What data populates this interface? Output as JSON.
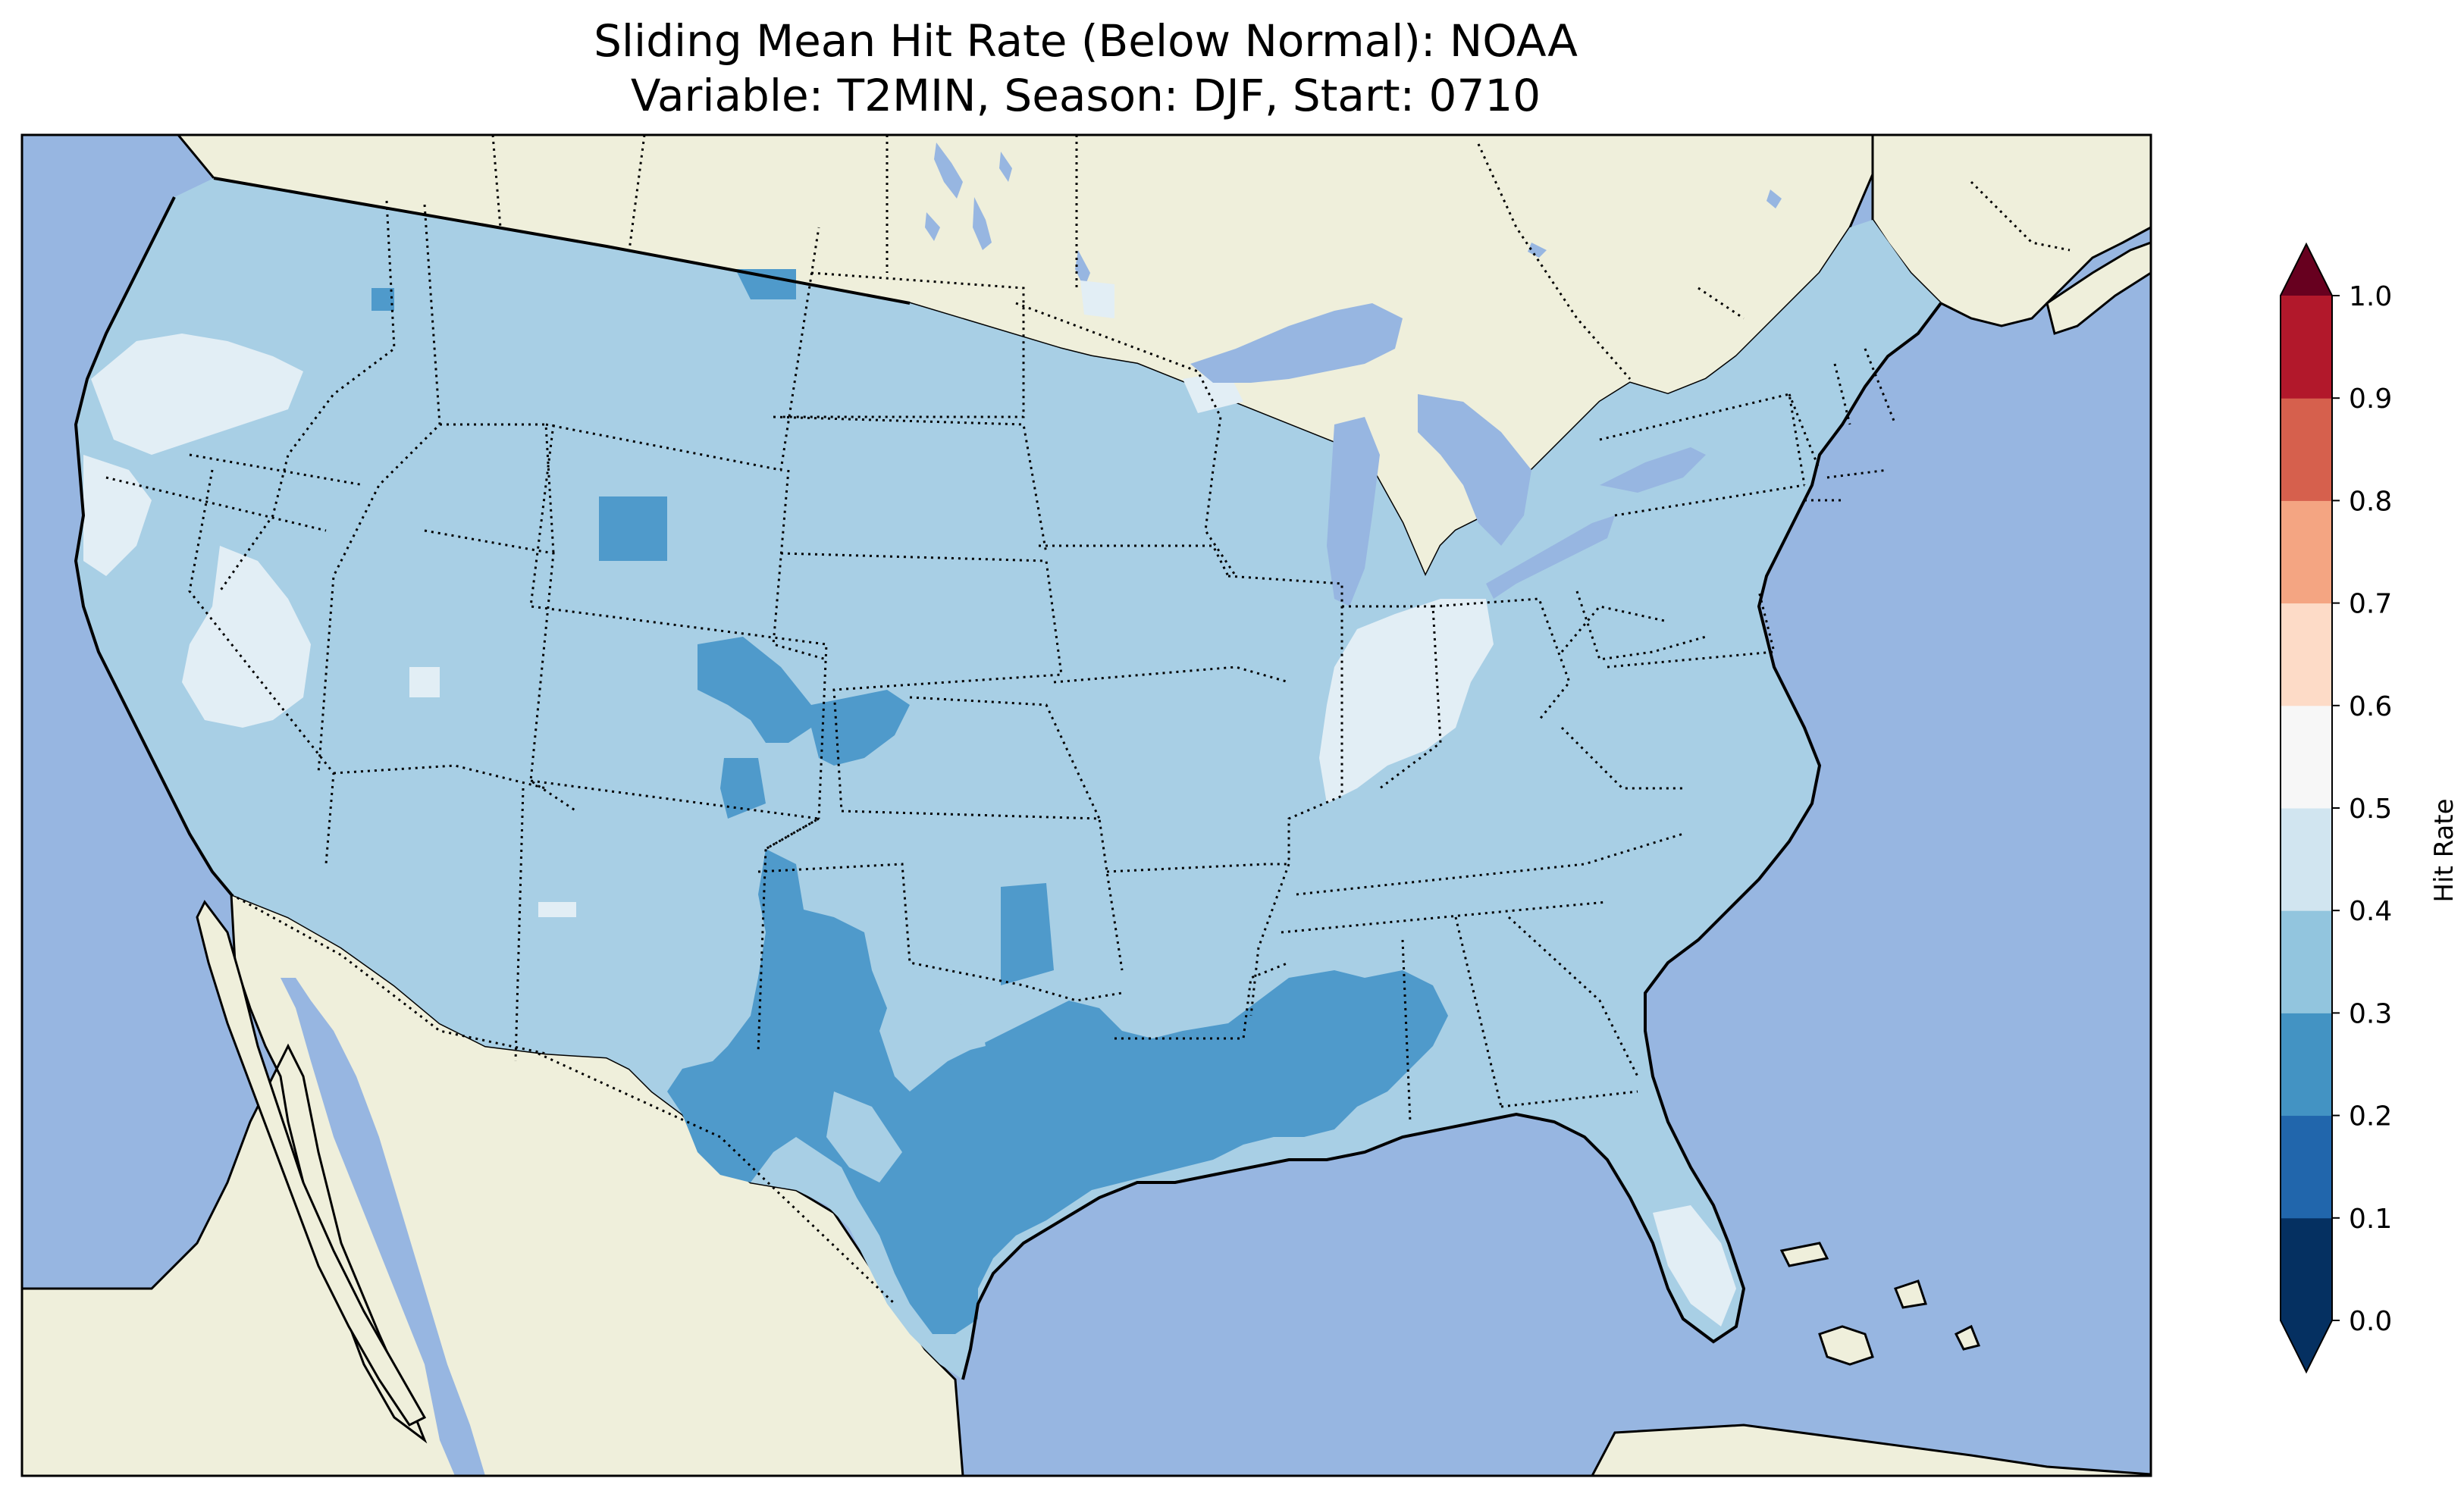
{
  "title": {
    "line1": "Sliding Mean Hit Rate (Below Normal): NOAA",
    "line2": "Variable: T2MIN, Season: DJF, Start: 0710"
  },
  "colorbar": {
    "label": "Hit Rate",
    "ticks": [
      "0.0",
      "0.1",
      "0.2",
      "0.3",
      "0.4",
      "0.5",
      "0.6",
      "0.7",
      "0.8",
      "0.9",
      "1.0"
    ],
    "colors": [
      "#053061",
      "#2166ac",
      "#4393c3",
      "#92c5de",
      "#d1e5f0",
      "#f7f7f7",
      "#fddbc7",
      "#f4a582",
      "#d6604d",
      "#b2182b",
      "#67001f"
    ],
    "under_color": "#053061",
    "over_color": "#67001f"
  },
  "map": {
    "ocean_color": "#97b6e1",
    "land_color": "#efefdb",
    "region": "Contiguous United States",
    "colors": {
      "bin_0.2_0.3": "#4f9acb",
      "bin_0.3_0.4": "#a8cfe5",
      "bin_0.4_0.5": "#e2eef5"
    }
  }
}
